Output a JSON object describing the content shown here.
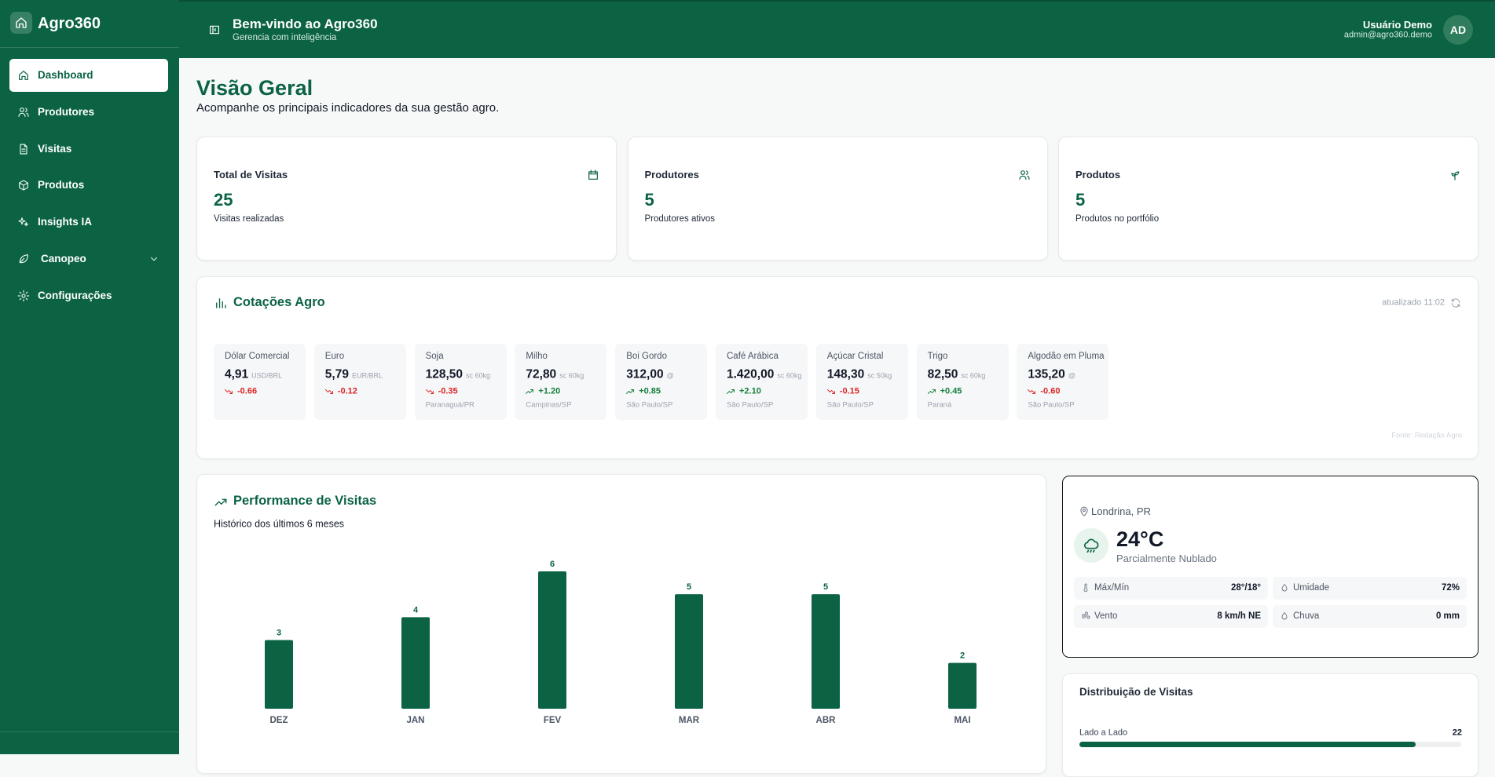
{
  "sidebar": {
    "brand": "Agro360",
    "menu": [
      {
        "label": "Dashboard",
        "active": true
      },
      {
        "label": "Produtores"
      },
      {
        "label": "Visitas"
      },
      {
        "label": "Produtos"
      },
      {
        "label": "Insights IA"
      },
      {
        "label": "Canopeo",
        "expandable": true
      },
      {
        "label": "Configurações"
      }
    ]
  },
  "header": {
    "title": "Bem-vindo ao Agro360",
    "subtitle": "Gerencia com inteligência",
    "user_name": "Usuário Demo",
    "user_email": "admin@agro360.demo",
    "avatar": "AD"
  },
  "page": {
    "title": "Visão Geral",
    "subtitle": "Acompanhe os principais indicadores da sua gestão agro."
  },
  "stats": [
    {
      "label": "Total de Visitas",
      "value": 25,
      "caption": "Visitas realizadas"
    },
    {
      "label": "Produtores",
      "value": 5,
      "caption": "Produtores ativos"
    },
    {
      "label": "Produtos",
      "value": 5,
      "caption": "Produtos no portfólio"
    }
  ],
  "quotes": {
    "title": "Cotações Agro",
    "updated": "atualizado 11:02",
    "source": "Fonte: Redação Agro",
    "items": [
      {
        "name": "Dólar Comercial",
        "price": "4,91",
        "unit": "USD/BRL",
        "change": "-0.66",
        "trend": "down"
      },
      {
        "name": "Euro",
        "price": "5,79",
        "unit": "EUR/BRL",
        "change": "-0.12",
        "trend": "down"
      },
      {
        "name": "Soja",
        "price": "128,50",
        "unit": "sc 60kg",
        "change": "-0.35",
        "trend": "down",
        "location": "Paranaguá/PR"
      },
      {
        "name": "Milho",
        "price": "72,80",
        "unit": "sc 60kg",
        "change": "+1.20",
        "trend": "up",
        "location": "Campinas/SP"
      },
      {
        "name": "Boi Gordo",
        "price": "312,00",
        "unit": "@",
        "change": "+0.85",
        "trend": "up",
        "location": "São Paulo/SP"
      },
      {
        "name": "Café Arábica",
        "price": "1.420,00",
        "unit": "sc 60kg",
        "change": "+2.10",
        "trend": "up",
        "location": "São Paulo/SP"
      },
      {
        "name": "Açúcar Cristal",
        "price": "148,30",
        "unit": "sc 50kg",
        "change": "-0.15",
        "trend": "down",
        "location": "São Paulo/SP"
      },
      {
        "name": "Trigo",
        "price": "82,50",
        "unit": "sc 60kg",
        "change": "+0.45",
        "trend": "up",
        "location": "Paraná"
      },
      {
        "name": "Algodão em Pluma",
        "price": "135,20",
        "unit": "@",
        "change": "-0.60",
        "trend": "down",
        "location": "São Paulo/SP"
      }
    ]
  },
  "chart_data": {
    "type": "bar",
    "title": "Performance de Visitas",
    "subtitle": "Histórico dos últimos 6 meses",
    "categories": [
      "DEZ",
      "JAN",
      "FEV",
      "MAR",
      "ABR",
      "MAI"
    ],
    "values": [
      3,
      4,
      6,
      5,
      5,
      2
    ],
    "color": "#0b6344"
  },
  "weather": {
    "location": "Londrina, PR",
    "temperature": "24°C",
    "condition": "Parcialmente Nublado",
    "details": [
      {
        "label": "Máx/Mín",
        "value": "28°/18°"
      },
      {
        "label": "Umidade",
        "value": "72%"
      },
      {
        "label": "Vento",
        "value": "8 km/h NE"
      },
      {
        "label": "Chuva",
        "value": "0 mm"
      }
    ]
  },
  "distribution": {
    "title": "Distribuição de Visitas",
    "items": [
      {
        "label": "Lado a Lado",
        "value": 22
      }
    ]
  }
}
